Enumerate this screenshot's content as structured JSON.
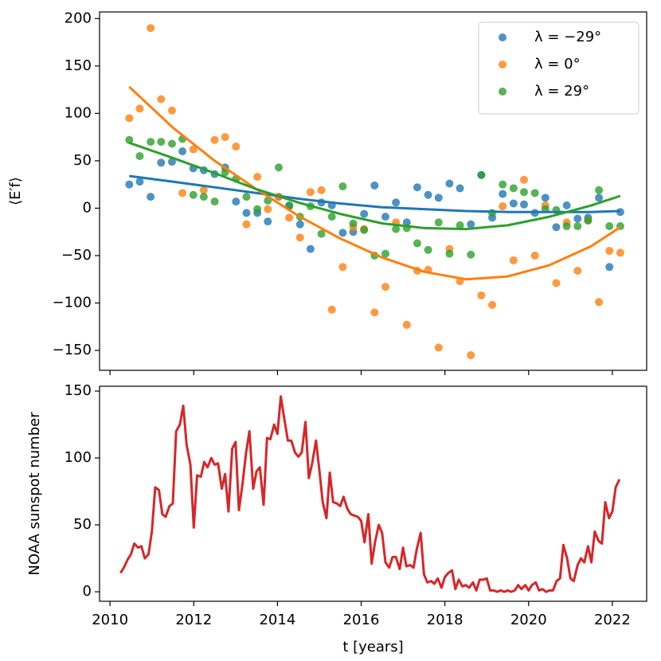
{
  "chart_data": [
    {
      "type": "scatter",
      "ylabel": "⟨E′f⟩",
      "xlim": [
        2009.75,
        2022.82
      ],
      "ylim": [
        -171,
        207
      ],
      "xticks": [
        2010,
        2012,
        2014,
        2016,
        2018,
        2020,
        2022
      ],
      "show_xtick_labels": false,
      "yticks": [
        {
          "value": -150,
          "label": "−150"
        },
        {
          "value": -100,
          "label": "−100"
        },
        {
          "value": -50,
          "label": "−50"
        },
        0,
        50,
        100,
        150,
        200
      ],
      "legend": "upper right",
      "x": [
        2010.46,
        2010.71,
        2010.97,
        2011.22,
        2011.48,
        2011.73,
        2011.99,
        2012.24,
        2012.5,
        2012.75,
        2013.01,
        2013.26,
        2013.52,
        2013.77,
        2014.03,
        2014.28,
        2014.54,
        2014.79,
        2015.05,
        2015.3,
        2015.56,
        2015.81,
        2016.07,
        2016.32,
        2016.58,
        2016.83,
        2017.09,
        2017.34,
        2017.6,
        2017.85,
        2018.11,
        2018.36,
        2018.62,
        2018.87,
        2019.13,
        2019.38,
        2019.64,
        2019.89,
        2020.15,
        2020.4,
        2020.66,
        2020.91,
        2021.17,
        2021.42,
        2021.68,
        2021.93,
        2022.19
      ],
      "series": [
        {
          "name": "λ = −29°",
          "color": "#1f77b4",
          "values": [
            25,
            28,
            12,
            48,
            49,
            60,
            42,
            40,
            36,
            43,
            7,
            -5,
            -5,
            -14,
            12,
            3,
            -17,
            -43,
            6,
            3,
            -26,
            -25,
            -6,
            24,
            -9,
            6,
            -15,
            22,
            14,
            11,
            26,
            21,
            -17,
            35,
            -10,
            15,
            5,
            4,
            -5,
            11,
            -20,
            3,
            -11,
            -10,
            11,
            -62,
            -4
          ]
        },
        {
          "name": "λ = 0°",
          "color": "#ff7f0e",
          "values": [
            95,
            105,
            190,
            115,
            103,
            16,
            62,
            19,
            72,
            75,
            65,
            -17,
            33,
            -1,
            12,
            -10,
            -31,
            17,
            19,
            -107,
            -62,
            -20,
            -22,
            -110,
            -83,
            -15,
            -123,
            -66,
            -65,
            -147,
            -43,
            -77,
            -155,
            -92,
            -102,
            2,
            -55,
            30,
            -50,
            3,
            -79,
            -15,
            -66,
            -13,
            -99,
            -45,
            -47
          ]
        },
        {
          "name": "λ = 29°",
          "color": "#2ca02c",
          "values": [
            72,
            55,
            70,
            70,
            68,
            73,
            14,
            12,
            7,
            38,
            31,
            12,
            -1,
            8,
            43,
            2,
            -9,
            2,
            -27,
            -9,
            23,
            -16,
            -23,
            -50,
            -48,
            -22,
            -21,
            -37,
            -44,
            -15,
            -48,
            -18,
            -49,
            35,
            -5,
            25,
            21,
            17,
            16,
            -1,
            -2,
            -19,
            -19,
            -13,
            19,
            -19,
            -19
          ]
        }
      ],
      "line_x": [
        2010.46,
        2011.5,
        2012.5,
        2013.5,
        2014.5,
        2015.5,
        2016.5,
        2017.5,
        2018.5,
        2019.5,
        2020.5,
        2021.5,
        2022.19
      ],
      "lines": [
        {
          "color": "#1f77b4",
          "values": [
            34,
            28,
            22,
            16,
            10,
            5,
            1,
            -1,
            -3,
            -4,
            -4,
            -4,
            -3
          ]
        },
        {
          "color": "#ff7f0e",
          "values": [
            128,
            85,
            50,
            20,
            -8,
            -32,
            -52,
            -67,
            -75,
            -72,
            -60,
            -40,
            -20
          ]
        },
        {
          "color": "#2ca02c",
          "values": [
            69,
            53,
            37,
            20,
            6,
            -6,
            -16,
            -21,
            -22,
            -18,
            -9,
            3,
            13
          ]
        }
      ]
    },
    {
      "type": "line",
      "ylabel": "NOAA sunspot number",
      "xlabel": "t [years]",
      "xlim": [
        2009.75,
        2022.82
      ],
      "ylim": [
        -7.1,
        153.6
      ],
      "xticks": [
        2010,
        2012,
        2014,
        2016,
        2018,
        2020,
        2022
      ],
      "show_xtick_labels": true,
      "yticks": [
        0,
        50,
        100,
        150
      ],
      "x": [
        2010.25,
        2010.33,
        2010.42,
        2010.5,
        2010.58,
        2010.67,
        2010.75,
        2010.83,
        2010.92,
        2011,
        2011.08,
        2011.17,
        2011.25,
        2011.33,
        2011.42,
        2011.5,
        2011.58,
        2011.67,
        2011.75,
        2011.83,
        2011.92,
        2012,
        2012.08,
        2012.17,
        2012.25,
        2012.33,
        2012.42,
        2012.5,
        2012.58,
        2012.67,
        2012.75,
        2012.83,
        2012.92,
        2013,
        2013.08,
        2013.17,
        2013.25,
        2013.33,
        2013.42,
        2013.5,
        2013.58,
        2013.67,
        2013.75,
        2013.83,
        2013.92,
        2014,
        2014.08,
        2014.17,
        2014.25,
        2014.33,
        2014.42,
        2014.5,
        2014.58,
        2014.67,
        2014.75,
        2014.83,
        2014.92,
        2015,
        2015.08,
        2015.17,
        2015.25,
        2015.33,
        2015.42,
        2015.5,
        2015.58,
        2015.67,
        2015.75,
        2015.83,
        2015.92,
        2016,
        2016.08,
        2016.17,
        2016.25,
        2016.33,
        2016.42,
        2016.5,
        2016.58,
        2016.67,
        2016.75,
        2016.83,
        2016.92,
        2017,
        2017.08,
        2017.17,
        2017.25,
        2017.33,
        2017.42,
        2017.5,
        2017.58,
        2017.67,
        2017.75,
        2017.83,
        2017.92,
        2018,
        2018.08,
        2018.17,
        2018.25,
        2018.33,
        2018.42,
        2018.5,
        2018.58,
        2018.67,
        2018.75,
        2018.83,
        2018.92,
        2019,
        2019.08,
        2019.17,
        2019.25,
        2019.33,
        2019.42,
        2019.5,
        2019.58,
        2019.67,
        2019.75,
        2019.83,
        2019.92,
        2020,
        2020.08,
        2020.17,
        2020.25,
        2020.33,
        2020.42,
        2020.5,
        2020.58,
        2020.67,
        2020.75,
        2020.83,
        2020.92,
        2021,
        2021.08,
        2021.17,
        2021.25,
        2021.33,
        2021.42,
        2021.5,
        2021.58,
        2021.67,
        2021.75,
        2021.83,
        2021.92,
        2022,
        2022.08,
        2022.17
      ],
      "series": [
        {
          "color": "#d62728",
          "values": [
            14,
            18,
            24,
            28,
            36,
            33,
            34,
            25,
            28,
            45,
            78,
            76,
            58,
            56,
            64,
            66,
            120,
            125,
            139,
            110,
            95,
            48,
            87,
            86,
            97,
            93,
            100,
            95,
            96,
            77,
            88,
            60,
            107,
            112,
            61,
            82,
            104,
            120,
            77,
            90,
            93,
            65,
            115,
            114,
            125,
            118,
            146,
            128,
            113,
            113,
            104,
            101,
            104,
            127,
            85,
            96,
            113,
            91,
            67,
            55,
            89,
            67,
            66,
            64,
            71,
            62,
            58,
            57,
            56,
            53,
            37,
            58,
            21,
            37,
            50,
            44,
            22,
            18,
            26,
            26,
            17,
            33,
            19,
            20,
            18,
            32,
            44,
            13,
            7,
            8,
            6,
            10,
            3,
            11,
            14,
            16,
            2,
            9,
            4,
            5,
            3,
            7,
            1,
            9,
            9,
            10,
            1,
            1,
            0,
            1,
            0,
            1,
            0,
            1,
            5,
            2,
            5,
            1,
            5,
            7,
            1,
            2,
            0,
            1,
            1,
            8,
            10,
            35,
            25,
            10,
            8,
            20,
            25,
            22,
            34,
            22,
            45,
            38,
            36,
            67,
            55,
            60,
            78,
            84
          ]
        }
      ]
    }
  ]
}
